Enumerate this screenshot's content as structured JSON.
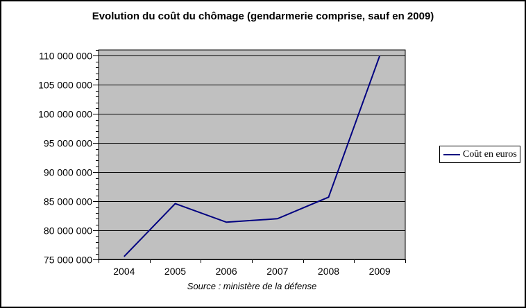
{
  "frame": {
    "background": "#ffffff",
    "border_color": "#000000"
  },
  "chart_data": {
    "type": "line",
    "title": "Evolution du coût du chômage (gendarmerie comprise, sauf en 2009)",
    "categories": [
      "2004",
      "2005",
      "2006",
      "2007",
      "2008",
      "2009"
    ],
    "series": [
      {
        "name": "Coût en euros",
        "color": "#000080",
        "values": [
          75500000,
          84600000,
          81400000,
          82000000,
          85700000,
          110000000
        ]
      }
    ],
    "xlabel": "",
    "ylabel": "",
    "ylim": [
      75000000,
      111000000
    ],
    "y_major_step": 5000000,
    "y_minor_step": 1000000,
    "y_tick_labels": [
      "75 000 000",
      "80 000 000",
      "85 000 000",
      "90 000 000",
      "95 000 000",
      "100 000 000",
      "105 000 000",
      "110 000 000"
    ],
    "grid": "horizontal-major-on",
    "plot_background": "#c0c0c0",
    "gridline_color": "#000000",
    "axis_color": "#000000",
    "legend_position": "right-middle",
    "source_note": "Source : ministère de la défense"
  }
}
